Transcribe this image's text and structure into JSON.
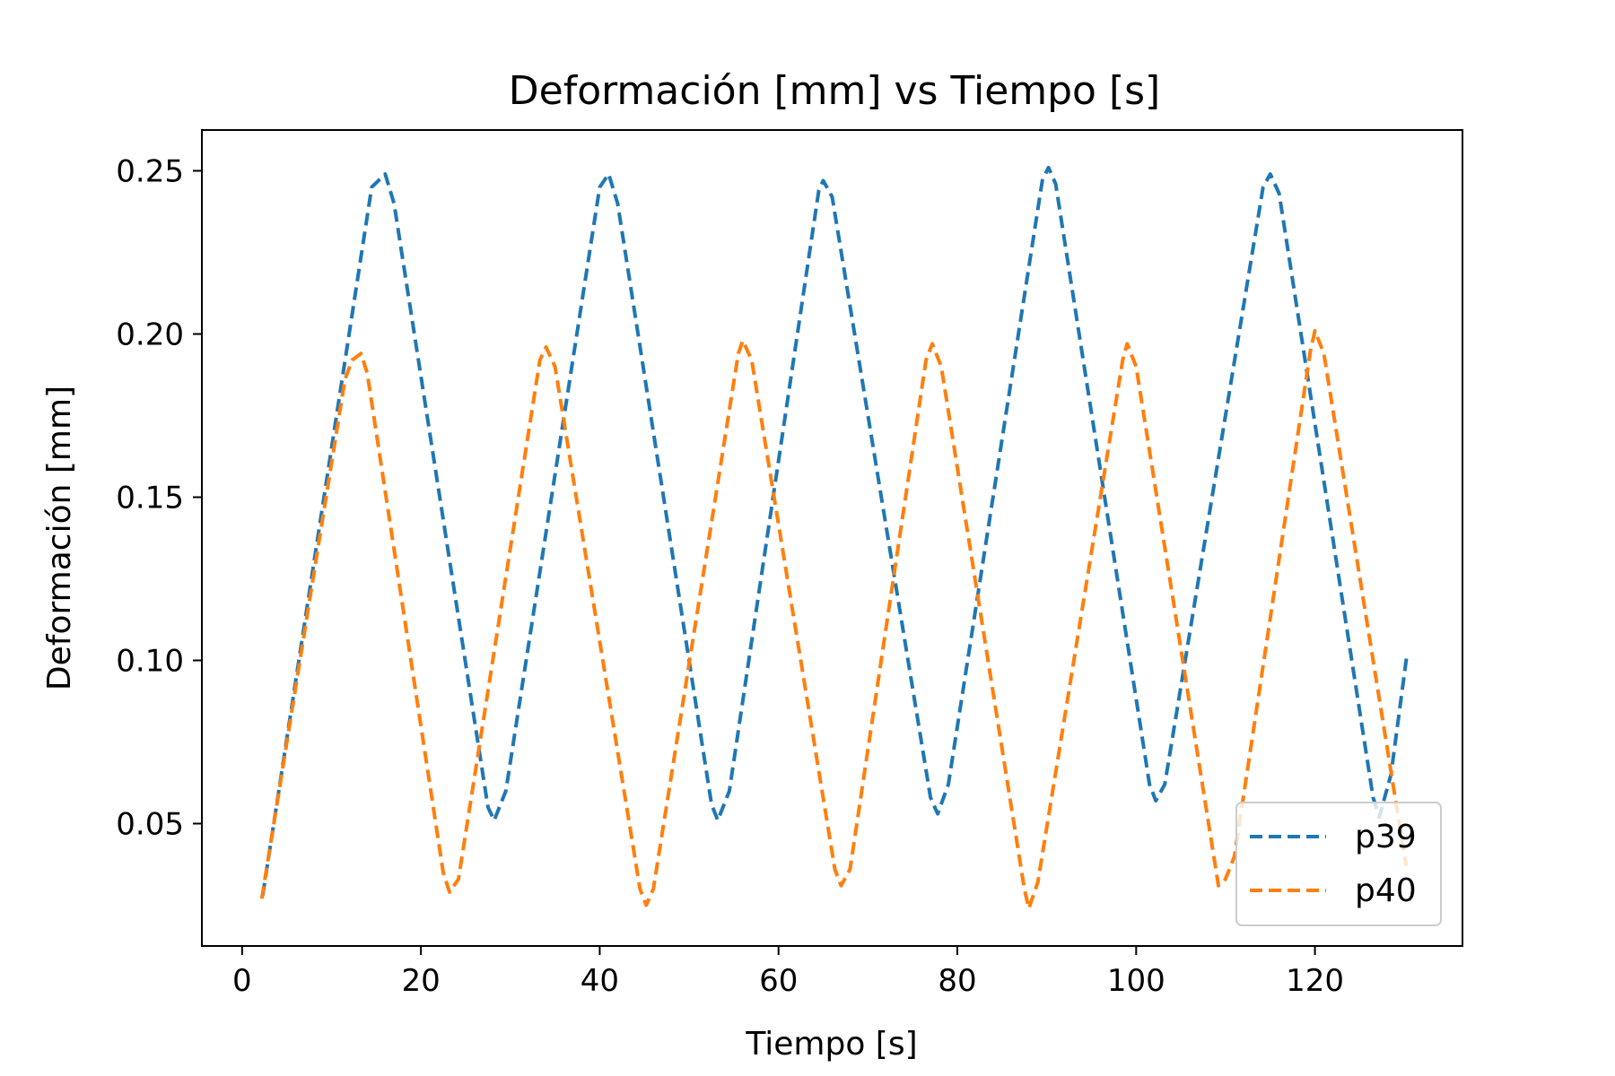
{
  "chart_data": {
    "type": "line",
    "title": "Deformación [mm] vs Tiempo [s]",
    "xlabel": "Tiempo [s]",
    "ylabel": "Deformación [mm]",
    "xlim": [
      -4.5,
      136.5
    ],
    "ylim": [
      0.0125,
      0.2625
    ],
    "xticks": [
      0,
      20,
      40,
      60,
      80,
      100,
      120
    ],
    "yticks": [
      0.05,
      0.1,
      0.15,
      0.2,
      0.25
    ],
    "xtick_labels": [
      "0",
      "20",
      "40",
      "60",
      "80",
      "100",
      "120"
    ],
    "ytick_labels": [
      "0.05",
      "0.10",
      "0.15",
      "0.20",
      "0.25"
    ],
    "grid": false,
    "legend_position": "lower right",
    "series": [
      {
        "name": "p39",
        "color": "#1f77b4",
        "linestyle": "dashed",
        "points": [
          [
            2.3,
            0.028
          ],
          [
            14.5,
            0.245
          ],
          [
            16.0,
            0.249
          ],
          [
            17.0,
            0.24
          ],
          [
            27.5,
            0.055
          ],
          [
            28.2,
            0.051
          ],
          [
            29.5,
            0.06
          ],
          [
            40.0,
            0.245
          ],
          [
            41.0,
            0.249
          ],
          [
            42.0,
            0.24
          ],
          [
            52.5,
            0.056
          ],
          [
            53.2,
            0.051
          ],
          [
            54.5,
            0.06
          ],
          [
            64.5,
            0.244
          ],
          [
            65.0,
            0.247
          ],
          [
            66.0,
            0.242
          ],
          [
            77.0,
            0.058
          ],
          [
            77.8,
            0.053
          ],
          [
            79.0,
            0.062
          ],
          [
            89.5,
            0.247
          ],
          [
            90.2,
            0.251
          ],
          [
            91.0,
            0.246
          ],
          [
            101.5,
            0.062
          ],
          [
            102.2,
            0.057
          ],
          [
            103.2,
            0.062
          ],
          [
            114.2,
            0.245
          ],
          [
            115.0,
            0.249
          ],
          [
            116.0,
            0.243
          ],
          [
            126.5,
            0.058
          ],
          [
            127.2,
            0.052
          ],
          [
            128.5,
            0.065
          ],
          [
            130.3,
            0.102
          ]
        ]
      },
      {
        "name": "p40",
        "color": "#ff7f0e",
        "linestyle": "dashed",
        "points": [
          [
            2.2,
            0.027
          ],
          [
            11.5,
            0.186
          ],
          [
            12.3,
            0.192
          ],
          [
            13.3,
            0.194
          ],
          [
            14.0,
            0.188
          ],
          [
            22.5,
            0.035
          ],
          [
            23.2,
            0.029
          ],
          [
            24.2,
            0.033
          ],
          [
            33.3,
            0.192
          ],
          [
            34.0,
            0.196
          ],
          [
            35.0,
            0.19
          ],
          [
            44.5,
            0.03
          ],
          [
            45.2,
            0.025
          ],
          [
            46.0,
            0.03
          ],
          [
            55.5,
            0.194
          ],
          [
            56.0,
            0.198
          ],
          [
            57.0,
            0.192
          ],
          [
            66.3,
            0.036
          ],
          [
            67.0,
            0.031
          ],
          [
            68.0,
            0.036
          ],
          [
            76.5,
            0.192
          ],
          [
            77.2,
            0.197
          ],
          [
            78.2,
            0.19
          ],
          [
            87.5,
            0.03
          ],
          [
            88.0,
            0.024
          ],
          [
            89.0,
            0.032
          ],
          [
            98.5,
            0.192
          ],
          [
            99.0,
            0.197
          ],
          [
            100.0,
            0.19
          ],
          [
            109.2,
            0.031
          ],
          [
            110.0,
            0.033
          ],
          [
            111.0,
            0.04
          ],
          [
            119.5,
            0.195
          ],
          [
            120.0,
            0.201
          ],
          [
            121.0,
            0.194
          ],
          [
            130.2,
            0.037
          ]
        ]
      }
    ]
  }
}
